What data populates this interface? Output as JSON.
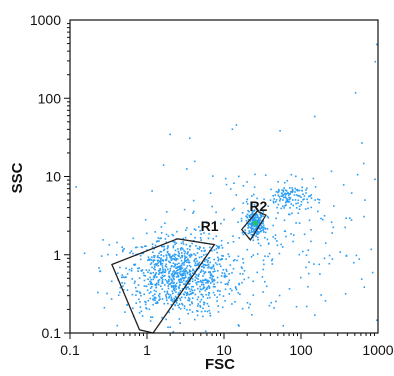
{
  "chart_data": {
    "type": "scatter",
    "xscale": "log",
    "yscale": "log",
    "xlim": [
      0.1,
      1000
    ],
    "ylim": [
      0.1,
      1000
    ],
    "xlabel": "FSC",
    "ylabel": "SSC",
    "xticks": [
      "0.1",
      "1",
      "10",
      "100",
      "1000"
    ],
    "yticks": [
      "0.1",
      "1",
      "10",
      "100",
      "1000"
    ],
    "grid": false,
    "point_color": "#2a9df4",
    "dense_color": "#22c55e",
    "gate_color": "#222222",
    "gates": [
      {
        "name": "R1",
        "label_pos": [
          6.5,
          2.0
        ],
        "polygon": [
          [
            0.35,
            0.75
          ],
          [
            2.5,
            1.6
          ],
          [
            7.5,
            1.35
          ],
          [
            1.2,
            0.1
          ],
          [
            0.8,
            0.11
          ]
        ]
      },
      {
        "name": "R2",
        "label_pos": [
          28,
          3.6
        ],
        "polygon": [
          [
            17,
            2.1
          ],
          [
            27,
            3.6
          ],
          [
            35,
            3.2
          ],
          [
            22,
            1.55
          ]
        ]
      }
    ],
    "populations": [
      {
        "label": "R1 cluster",
        "cx": 2.5,
        "cy": 0.55,
        "sx": 0.35,
        "sy": 0.25,
        "count": 900
      },
      {
        "label": "R2 cluster",
        "cx": 25,
        "cy": 2.6,
        "sx": 0.06,
        "sy": 0.07,
        "count": 220
      },
      {
        "label": "upper cluster",
        "cx": 70,
        "cy": 5.5,
        "sx": 0.14,
        "sy": 0.09,
        "count": 120
      },
      {
        "label": "background",
        "cx": 30,
        "cy": 1.5,
        "sx": 0.8,
        "sy": 0.55,
        "count": 260
      }
    ],
    "outliers": [
      [
        1000,
        500
      ],
      [
        900,
        300
      ],
      [
        500,
        120
      ],
      [
        350,
        8
      ],
      [
        420,
        3
      ],
      [
        250,
        0.9
      ],
      [
        600,
        0.5
      ],
      [
        800,
        1.2
      ],
      [
        15,
        0.13
      ],
      [
        40,
        0.25
      ],
      [
        120,
        0.4
      ]
    ]
  }
}
